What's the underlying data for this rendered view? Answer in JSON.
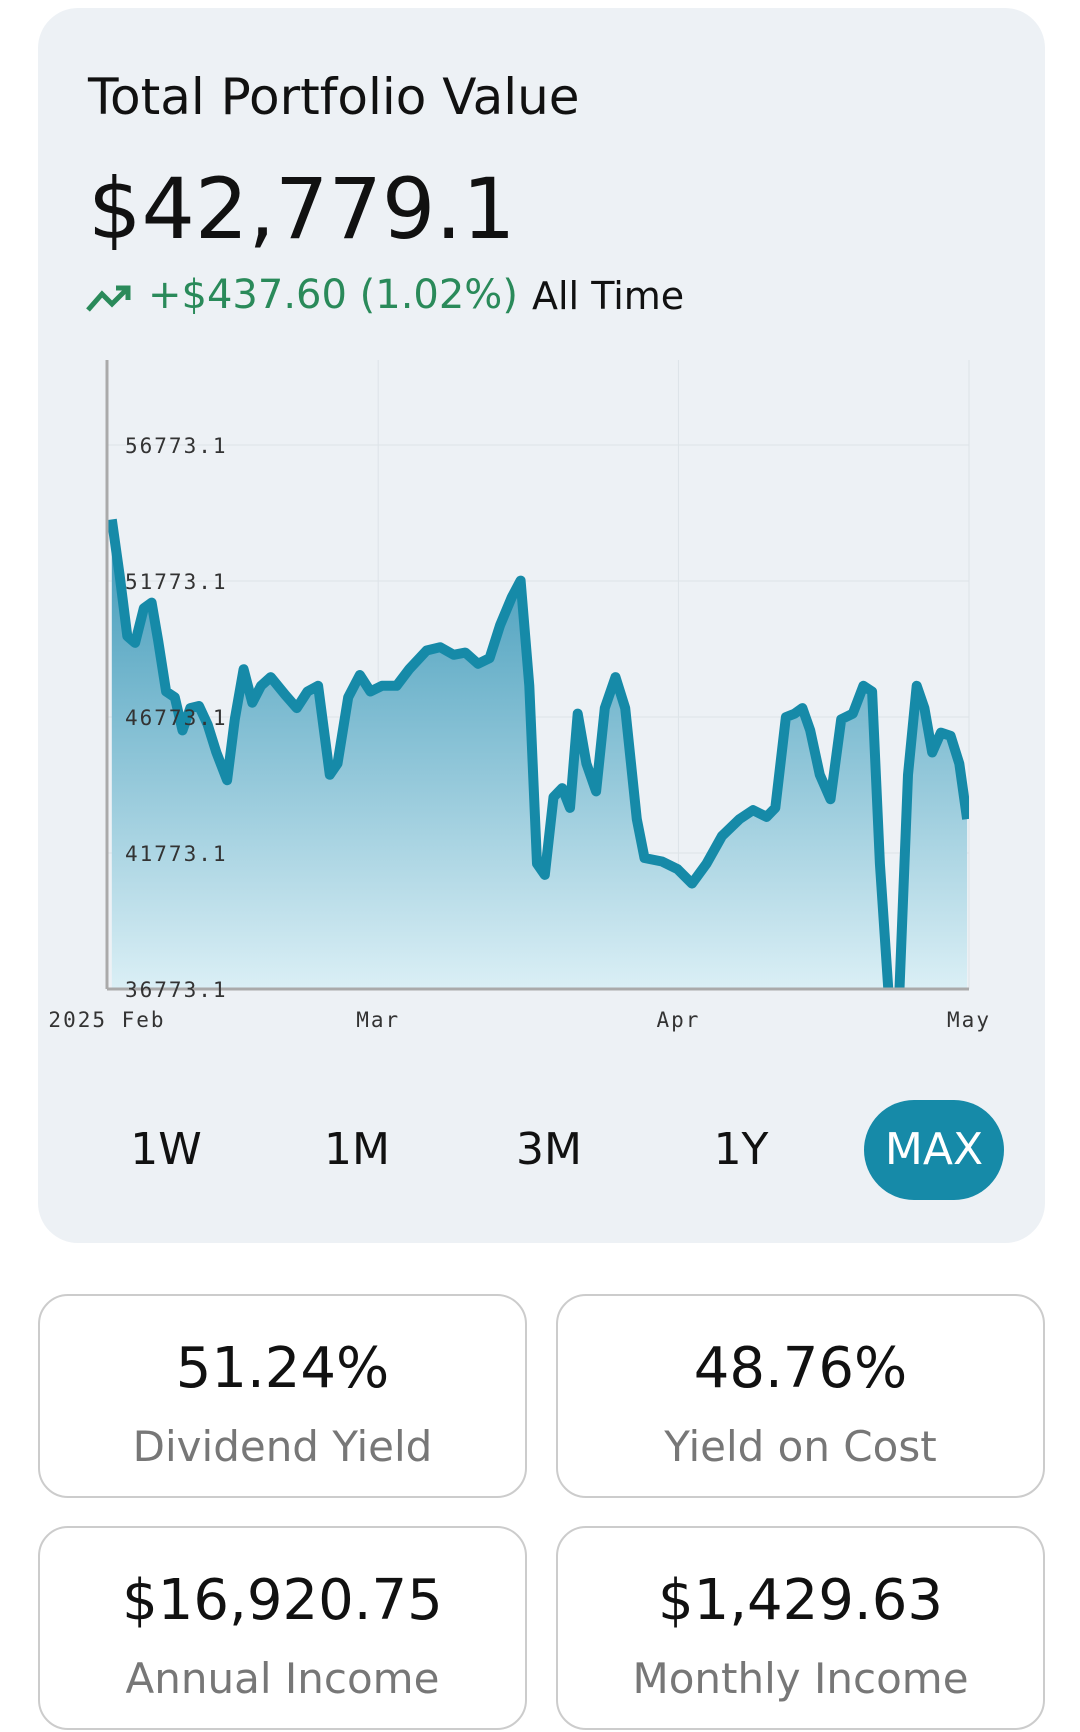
{
  "header": {
    "title": "Total Portfolio Value",
    "value": "$42,779.1",
    "change": "+$437.60 (1.02%)",
    "period": "All Time"
  },
  "chart_data": {
    "type": "line",
    "color": "#168aa8",
    "x": [
      0.5,
      1.3,
      2.1,
      2.9,
      3.8,
      4.6,
      5.3,
      6.1,
      7.0,
      7.8,
      8.6,
      9.5,
      10.4,
      11.3,
      12.4,
      13.2,
      14.1,
      15.0,
      15.9,
      16.9,
      18.4,
      19.6,
      20.7,
      21.8,
      23.0,
      23.8,
      24.9,
      26.1,
      27.2,
      28.4,
      29.9,
      31.2,
      33.0,
      34.4,
      35.8,
      37.0,
      38.3,
      39.5,
      40.6,
      41.8,
      42.7,
      43.6,
      44.4,
      45.2,
      46.1,
      47.0,
      47.8,
      48.6,
      49.5,
      50.5,
      51.4,
      52.5,
      53.5,
      54.7,
      55.5,
      57.3,
      58.9,
      60.4,
      61.9,
      63.5,
      65.3,
      66.7,
      68.1,
      69.0,
      70.1,
      71.0,
      71.8,
      72.6,
      73.6,
      74.7,
      75.8,
      77.0,
      78.1,
      79.0,
      79.8,
      80.7,
      81.8,
      82.7,
      83.6,
      84.4,
      85.2,
      86.1,
      87.1,
      88.0,
      88.8
    ],
    "values": [
      54040,
      52000,
      49750,
      49500,
      50770,
      50980,
      49550,
      47710,
      47500,
      46280,
      47100,
      47180,
      46490,
      45470,
      44450,
      46690,
      48530,
      47300,
      47920,
      48240,
      47590,
      47100,
      47710,
      47920,
      44650,
      45060,
      47500,
      48320,
      47710,
      47920,
      47920,
      48530,
      49220,
      49340,
      49060,
      49140,
      48730,
      48940,
      50160,
      51180,
      51790,
      47920,
      41380,
      40970,
      43830,
      44160,
      43430,
      46900,
      45060,
      44040,
      47100,
      48240,
      47100,
      43020,
      41590,
      41460,
      41180,
      40650,
      41380,
      42400,
      43020,
      43350,
      43100,
      43430,
      46770,
      46900,
      47100,
      46280,
      44650,
      43750,
      46690,
      46900,
      47920,
      47710,
      41380,
      36600,
      36600,
      44650,
      47920,
      47100,
      45470,
      46200,
      46080,
      45060,
      43020
    ],
    "xlim": [
      0,
      89
    ],
    "xticks": [
      {
        "value": 0,
        "label": "2025 Feb"
      },
      {
        "value": 28,
        "label": "Mar"
      },
      {
        "value": 59,
        "label": "Apr"
      },
      {
        "value": 89,
        "label": "May"
      }
    ],
    "ylim": [
      36773.1,
      59900
    ],
    "yticks": [
      36773.1,
      41773.1,
      46773.1,
      51773.1,
      56773.1
    ],
    "grid": true
  },
  "timeframes": [
    "1W",
    "1M",
    "3M",
    "1Y",
    "MAX"
  ],
  "active_timeframe": "MAX",
  "stats": [
    {
      "value": "51.24%",
      "label": "Dividend Yield"
    },
    {
      "value": "48.76%",
      "label": "Yield on Cost"
    },
    {
      "value": "$16,920.75",
      "label": "Annual Income"
    },
    {
      "value": "$1,429.63",
      "label": "Monthly Income"
    }
  ]
}
